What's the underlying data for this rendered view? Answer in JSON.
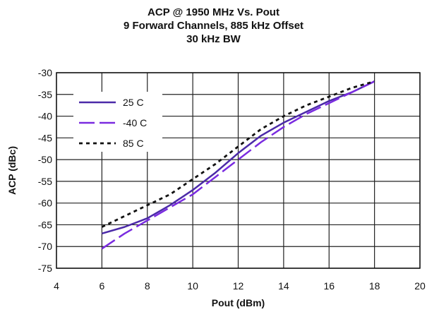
{
  "chart_data": {
    "type": "line",
    "title": "ACP @ 1950 MHz Vs. Pout",
    "subtitle_1": "9 Forward Channels, 885 kHz Offset",
    "subtitle_2": "30 kHz BW",
    "xlabel": "Pout (dBm)",
    "ylabel": "ACP (dBc)",
    "xlim": [
      4,
      20
    ],
    "ylim": [
      -75,
      -30
    ],
    "xticks": [
      4,
      6,
      8,
      10,
      12,
      14,
      16,
      18,
      20
    ],
    "yticks": [
      -30,
      -35,
      -40,
      -45,
      -50,
      -55,
      -60,
      -65,
      -70,
      -75
    ],
    "grid": true,
    "legend_position": "top-left",
    "series": [
      {
        "name": "25 C",
        "style": "solid",
        "color": "#4b2aa8",
        "points": [
          [
            6,
            -67
          ],
          [
            7,
            -65.5
          ],
          [
            8,
            -63.5
          ],
          [
            9,
            -60.5
          ],
          [
            10,
            -57
          ],
          [
            11,
            -53
          ],
          [
            12,
            -48.5
          ],
          [
            13,
            -44.5
          ],
          [
            14,
            -41.5
          ],
          [
            15,
            -39
          ],
          [
            16,
            -36.5
          ],
          [
            17,
            -34.5
          ],
          [
            18,
            -32
          ]
        ]
      },
      {
        "name": "-40 C",
        "style": "dashed",
        "color": "#7a2be0",
        "points": [
          [
            6,
            -70.5
          ],
          [
            7,
            -67
          ],
          [
            8,
            -64
          ],
          [
            9,
            -61
          ],
          [
            10,
            -58
          ],
          [
            11,
            -54
          ],
          [
            12,
            -50
          ],
          [
            13,
            -46
          ],
          [
            14,
            -42.5
          ],
          [
            15,
            -39.5
          ],
          [
            16,
            -37
          ],
          [
            17,
            -34.5
          ],
          [
            18,
            -32
          ]
        ]
      },
      {
        "name": "85 C",
        "style": "dotted",
        "color": "#111111",
        "points": [
          [
            6,
            -65.5
          ],
          [
            7,
            -63
          ],
          [
            8,
            -60.5
          ],
          [
            9,
            -58
          ],
          [
            10,
            -54.5
          ],
          [
            11,
            -51
          ],
          [
            12,
            -47
          ],
          [
            13,
            -43
          ],
          [
            14,
            -40
          ],
          [
            15,
            -37.5
          ],
          [
            16,
            -35.5
          ],
          [
            17,
            -33.5
          ],
          [
            18,
            -32
          ]
        ]
      }
    ]
  }
}
